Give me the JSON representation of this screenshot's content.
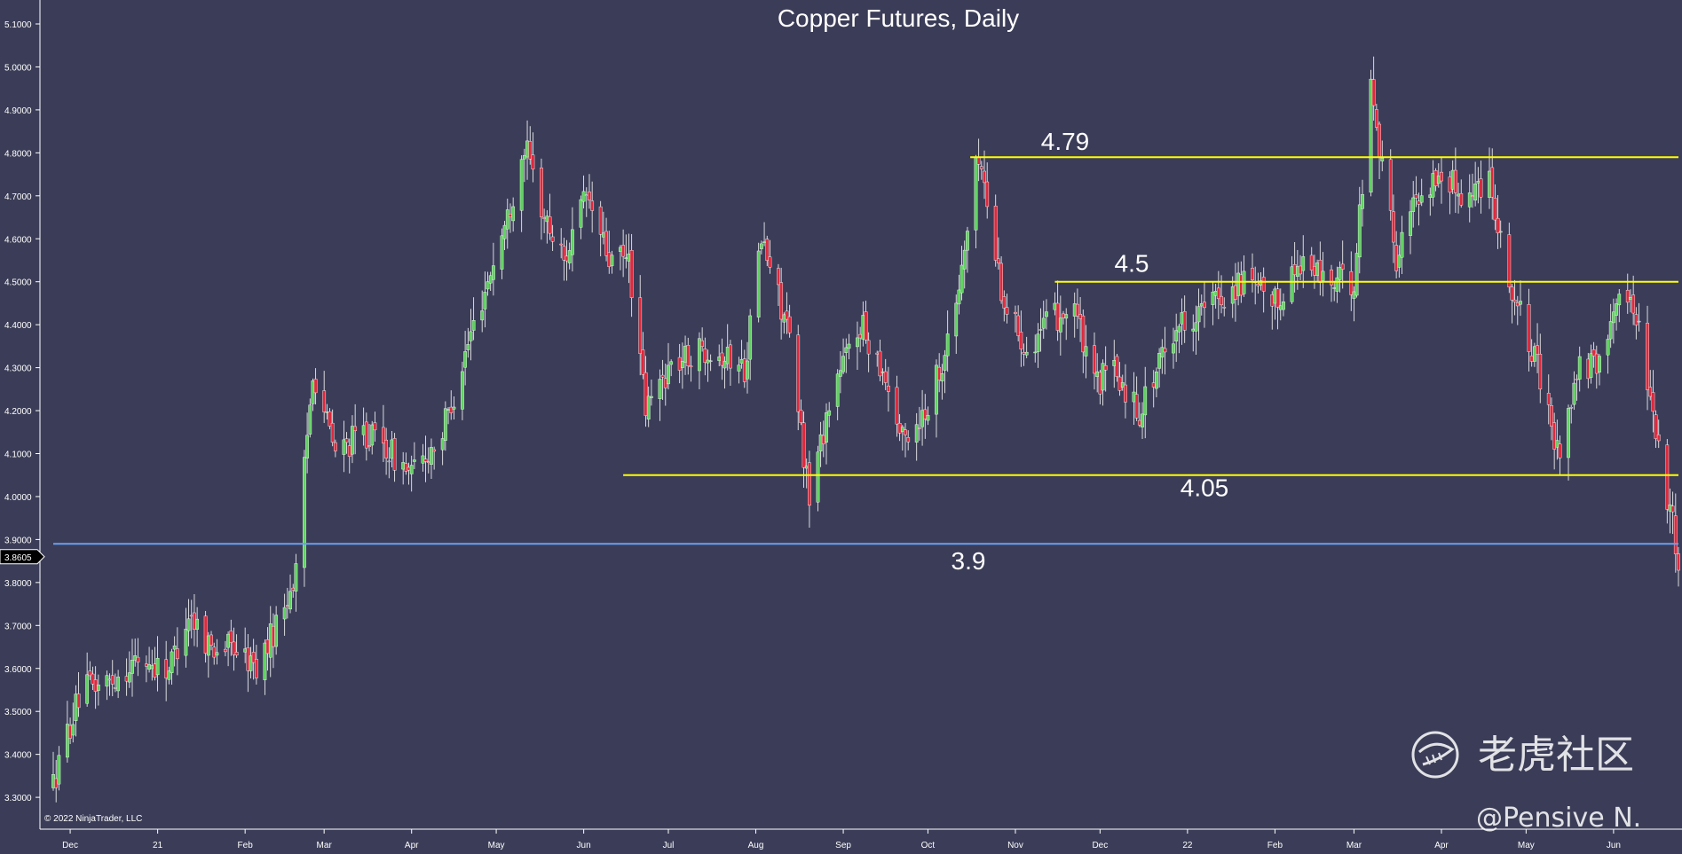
{
  "chart_data": {
    "type": "candlestick",
    "title": "Copper Futures, Daily",
    "ylim": [
      3.25,
      5.12
    ],
    "y_ticks": [
      "5.1000",
      "5.0000",
      "4.9000",
      "4.8000",
      "4.7000",
      "4.6000",
      "4.5000",
      "4.4000",
      "4.3000",
      "4.2000",
      "4.1000",
      "4.0000",
      "3.9000",
      "3.8000",
      "3.7000",
      "3.6000",
      "3.5000",
      "3.4000",
      "3.3000"
    ],
    "x_axis": {
      "start": "2020-11-25",
      "end": "2022-06-24",
      "labels": [
        {
          "date": "2020-12-01",
          "label": "Dec"
        },
        {
          "date": "2021-01-01",
          "label": "21"
        },
        {
          "date": "2021-02-01",
          "label": "Feb"
        },
        {
          "date": "2021-03-01",
          "label": "Mar"
        },
        {
          "date": "2021-04-01",
          "label": "Apr"
        },
        {
          "date": "2021-05-01",
          "label": "May"
        },
        {
          "date": "2021-06-01",
          "label": "Jun"
        },
        {
          "date": "2021-07-01",
          "label": "Jul"
        },
        {
          "date": "2021-08-01",
          "label": "Aug"
        },
        {
          "date": "2021-09-01",
          "label": "Sep"
        },
        {
          "date": "2021-10-01",
          "label": "Oct"
        },
        {
          "date": "2021-11-01",
          "label": "Nov"
        },
        {
          "date": "2021-12-01",
          "label": "Dec"
        },
        {
          "date": "2022-01-01",
          "label": "22"
        },
        {
          "date": "2022-02-01",
          "label": "Feb"
        },
        {
          "date": "2022-03-01",
          "label": "Mar"
        },
        {
          "date": "2022-04-01",
          "label": "Apr"
        },
        {
          "date": "2022-05-01",
          "label": "May"
        },
        {
          "date": "2022-06-01",
          "label": "Jun"
        }
      ]
    },
    "price_path": [
      [
        "2020-11-25",
        3.33
      ],
      [
        "2020-11-30",
        3.45
      ],
      [
        "2020-12-05",
        3.55
      ],
      [
        "2020-12-15",
        3.57
      ],
      [
        "2020-12-25",
        3.62
      ],
      [
        "2021-01-05",
        3.6
      ],
      [
        "2021-01-12",
        3.73
      ],
      [
        "2021-01-20",
        3.65
      ],
      [
        "2021-01-28",
        3.65
      ],
      [
        "2021-02-05",
        3.6
      ],
      [
        "2021-02-12",
        3.7
      ],
      [
        "2021-02-19",
        3.82
      ],
      [
        "2021-02-25",
        4.3
      ],
      [
        "2021-03-05",
        4.1
      ],
      [
        "2021-03-15",
        4.15
      ],
      [
        "2021-03-22",
        4.12
      ],
      [
        "2021-04-01",
        4.05
      ],
      [
        "2021-04-12",
        4.15
      ],
      [
        "2021-04-23",
        4.4
      ],
      [
        "2021-05-05",
        4.65
      ],
      [
        "2021-05-11",
        4.82
      ],
      [
        "2021-05-18",
        4.65
      ],
      [
        "2021-05-25",
        4.55
      ],
      [
        "2021-06-02",
        4.7
      ],
      [
        "2021-06-10",
        4.55
      ],
      [
        "2021-06-17",
        4.55
      ],
      [
        "2021-06-23",
        4.2
      ],
      [
        "2021-07-01",
        4.3
      ],
      [
        "2021-07-15",
        4.35
      ],
      [
        "2021-07-28",
        4.3
      ],
      [
        "2021-08-03",
        4.6
      ],
      [
        "2021-08-12",
        4.4
      ],
      [
        "2021-08-20",
        4.0
      ],
      [
        "2021-08-28",
        4.25
      ],
      [
        "2021-09-07",
        4.4
      ],
      [
        "2021-09-15",
        4.3
      ],
      [
        "2021-09-22",
        4.13
      ],
      [
        "2021-09-30",
        4.2
      ],
      [
        "2021-10-10",
        4.4
      ],
      [
        "2021-10-19",
        4.8
      ],
      [
        "2021-10-28",
        4.45
      ],
      [
        "2021-11-05",
        4.35
      ],
      [
        "2021-11-12",
        4.4
      ],
      [
        "2021-11-22",
        4.45
      ],
      [
        "2021-11-28",
        4.25
      ],
      [
        "2021-12-05",
        4.3
      ],
      [
        "2021-12-15",
        4.2
      ],
      [
        "2021-12-28",
        4.4
      ],
      [
        "2022-01-10",
        4.45
      ],
      [
        "2022-01-20",
        4.5
      ],
      [
        "2022-02-01",
        4.45
      ],
      [
        "2022-02-10",
        4.55
      ],
      [
        "2022-02-20",
        4.5
      ],
      [
        "2022-03-01",
        4.5
      ],
      [
        "2022-03-07",
        4.96
      ],
      [
        "2022-03-16",
        4.55
      ],
      [
        "2022-03-23",
        4.7
      ],
      [
        "2022-04-01",
        4.75
      ],
      [
        "2022-04-10",
        4.7
      ],
      [
        "2022-04-18",
        4.75
      ],
      [
        "2022-04-25",
        4.5
      ],
      [
        "2022-05-05",
        4.3
      ],
      [
        "2022-05-12",
        4.1
      ],
      [
        "2022-05-20",
        4.3
      ],
      [
        "2022-05-27",
        4.3
      ],
      [
        "2022-06-03",
        4.5
      ],
      [
        "2022-06-10",
        4.4
      ],
      [
        "2022-06-20",
        4.0
      ],
      [
        "2022-06-24",
        3.86
      ]
    ],
    "levels": [
      {
        "value": 4.79,
        "label": "4.79",
        "from": "2021-10-16",
        "to": "2022-06-24",
        "color": "#ffff00"
      },
      {
        "value": 4.5,
        "label": "4.5",
        "from": "2021-11-15",
        "to": "2022-06-24",
        "color": "#ffff00"
      },
      {
        "value": 4.05,
        "label": "4.05",
        "from": "2021-06-15",
        "to": "2022-06-24",
        "color": "#ffff00"
      },
      {
        "value": 3.89,
        "label": "3.9",
        "from": "2020-11-25",
        "to": "2022-06-24",
        "color": "#6aa0f0"
      }
    ],
    "last_price": "3.8605",
    "colors": {
      "background": "#3b3d58",
      "up": "#5fd35f",
      "down": "#e0283c",
      "wick": "#ffffff",
      "axis_text": "#ffffff"
    }
  },
  "copyright": "© 2022 NinjaTrader, LLC",
  "watermark": {
    "brand": "老虎社区",
    "author": "@Pensive N."
  }
}
